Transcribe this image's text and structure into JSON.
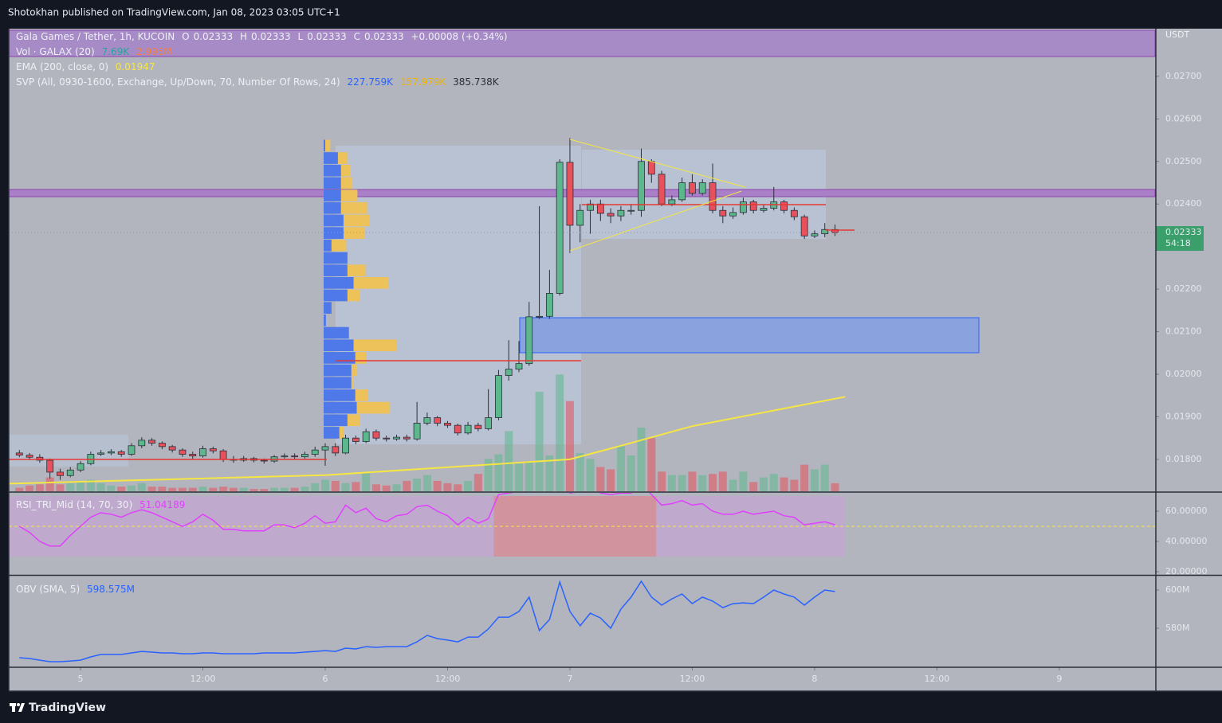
{
  "header": {
    "publisher": "Shotokhan published on TradingView.com, Jan 08, 2023 03:05 UTC+1"
  },
  "footer": {
    "brand": "TradingView"
  },
  "chart_data": [
    {
      "type": "candlestick",
      "symbol": "Gala Games / Tether, 1h, KUCOIN",
      "readout": {
        "labels": [
          "O",
          "H",
          "L",
          "C"
        ],
        "values": [
          0.02333,
          0.02333,
          0.02333,
          0.02333
        ],
        "change": "+0.00008 (+0.34%)"
      },
      "currency": "USDT",
      "last_price": 0.02333,
      "countdown": "54:18",
      "up_color": "#5cb88c",
      "down_color": "#e8505b",
      "xlim": [
        -7.04,
        105.47
      ],
      "ylim": [
        0.01725,
        0.02812
      ],
      "yticks": [
        {
          "value": 0.027,
          "label": "0.02700"
        },
        {
          "value": 0.026,
          "label": "0.02600"
        },
        {
          "value": 0.025,
          "label": "0.02500"
        },
        {
          "value": 0.024,
          "label": "0.02400"
        },
        {
          "value": 0.022,
          "label": "0.02200"
        },
        {
          "value": 0.021,
          "label": "0.02100"
        },
        {
          "value": 0.02,
          "label": "0.02000"
        },
        {
          "value": 0.019,
          "label": "0.01900"
        },
        {
          "value": 0.018,
          "label": "0.01800"
        }
      ],
      "x": [
        -6,
        -5,
        -4,
        -3,
        -2,
        -1,
        0,
        1,
        2,
        3,
        4,
        5,
        6,
        7,
        8,
        9,
        10,
        11,
        12,
        13,
        14,
        15,
        16,
        17,
        18,
        19,
        20,
        21,
        22,
        23,
        24,
        25,
        26,
        27,
        28,
        29,
        30,
        31,
        32,
        33,
        34,
        35,
        36,
        37,
        38,
        39,
        40,
        41,
        42,
        43,
        44,
        45,
        46,
        47,
        48,
        49,
        50,
        51,
        52,
        53,
        54,
        55,
        56,
        57,
        58,
        59,
        60,
        61,
        62,
        63,
        64,
        65,
        66,
        67,
        68,
        69,
        70,
        71,
        72,
        73,
        74
      ],
      "open": [
        0.01815,
        0.0181,
        0.01805,
        0.01798,
        0.0177,
        0.01762,
        0.01775,
        0.0179,
        0.01812,
        0.01815,
        0.01818,
        0.01812,
        0.01832,
        0.01845,
        0.01838,
        0.0183,
        0.01822,
        0.01812,
        0.01808,
        0.01825,
        0.0182,
        0.018,
        0.01798,
        0.01802,
        0.01798,
        0.01796,
        0.01806,
        0.01808,
        0.01806,
        0.01812,
        0.01822,
        0.0183,
        0.01815,
        0.0185,
        0.01842,
        0.01865,
        0.0185,
        0.01848,
        0.01852,
        0.01848,
        0.01885,
        0.01898,
        0.01885,
        0.0188,
        0.01862,
        0.0188,
        0.01872,
        0.01898,
        0.01997,
        0.02012,
        0.02025,
        0.02135,
        0.02136,
        0.0219,
        0.02498,
        0.0235,
        0.02385,
        0.024,
        0.02378,
        0.02372,
        0.02385,
        0.02385,
        0.025,
        0.0247,
        0.024,
        0.0241,
        0.0245,
        0.02425,
        0.0245,
        0.02385,
        0.02372,
        0.0238,
        0.02405,
        0.02385,
        0.0239,
        0.02405,
        0.02385,
        0.0237,
        0.02325,
        0.0233,
        0.0234
      ],
      "high": [
        0.01822,
        0.01815,
        0.01812,
        0.01802,
        0.01778,
        0.01782,
        0.01796,
        0.01818,
        0.01822,
        0.01824,
        0.01822,
        0.01838,
        0.01852,
        0.0185,
        0.01842,
        0.01834,
        0.01826,
        0.01818,
        0.01832,
        0.0183,
        0.01824,
        0.01808,
        0.01808,
        0.01806,
        0.01802,
        0.0181,
        0.01814,
        0.01814,
        0.01818,
        0.0183,
        0.01838,
        0.01838,
        0.01858,
        0.01856,
        0.01872,
        0.0187,
        0.01856,
        0.01858,
        0.01858,
        0.01935,
        0.0191,
        0.01902,
        0.0189,
        0.01884,
        0.01888,
        0.01886,
        0.01965,
        0.0201,
        0.0208,
        0.02078,
        0.0217,
        0.02395,
        0.02245,
        0.02505,
        0.02555,
        0.024,
        0.0241,
        0.0241,
        0.0239,
        0.02395,
        0.024,
        0.0253,
        0.02505,
        0.02478,
        0.0242,
        0.02462,
        0.0247,
        0.02458,
        0.02495,
        0.02395,
        0.02392,
        0.02415,
        0.0241,
        0.02398,
        0.0244,
        0.0241,
        0.02392,
        0.02375,
        0.02338,
        0.02355,
        0.02352
      ],
      "low": [
        0.01805,
        0.018,
        0.01792,
        0.01755,
        0.01752,
        0.01758,
        0.0177,
        0.01786,
        0.01808,
        0.0181,
        0.01806,
        0.01808,
        0.01826,
        0.01832,
        0.01824,
        0.01816,
        0.01806,
        0.018,
        0.01804,
        0.01814,
        0.01794,
        0.01792,
        0.01794,
        0.01793,
        0.0179,
        0.01792,
        0.01802,
        0.018,
        0.01802,
        0.01806,
        0.01785,
        0.01808,
        0.01812,
        0.01836,
        0.01838,
        0.01844,
        0.01842,
        0.01844,
        0.01842,
        0.01844,
        0.0188,
        0.01878,
        0.01874,
        0.01856,
        0.01858,
        0.01866,
        0.01868,
        0.01892,
        0.01985,
        0.02005,
        0.0202,
        0.0213,
        0.0213,
        0.02185,
        0.02285,
        0.0231,
        0.0233,
        0.0236,
        0.02355,
        0.0236,
        0.02375,
        0.0237,
        0.0245,
        0.02395,
        0.02395,
        0.02405,
        0.0242,
        0.0242,
        0.02378,
        0.02355,
        0.02365,
        0.02375,
        0.02378,
        0.0238,
        0.02385,
        0.02378,
        0.02362,
        0.02318,
        0.0232,
        0.02322,
        0.02325
      ],
      "close": [
        0.0181,
        0.01805,
        0.01798,
        0.0177,
        0.01762,
        0.01775,
        0.0179,
        0.01812,
        0.01815,
        0.01818,
        0.01812,
        0.01832,
        0.01845,
        0.01838,
        0.0183,
        0.01822,
        0.01812,
        0.01808,
        0.01825,
        0.0182,
        0.018,
        0.01798,
        0.01802,
        0.01798,
        0.01796,
        0.01806,
        0.01808,
        0.01806,
        0.01812,
        0.01822,
        0.0183,
        0.01815,
        0.0185,
        0.01842,
        0.01865,
        0.0185,
        0.01848,
        0.01852,
        0.01848,
        0.01885,
        0.01898,
        0.01885,
        0.0188,
        0.01862,
        0.0188,
        0.01872,
        0.01898,
        0.01997,
        0.02012,
        0.02025,
        0.02135,
        0.02136,
        0.0219,
        0.02498,
        0.0235,
        0.02385,
        0.024,
        0.02378,
        0.02372,
        0.02385,
        0.02385,
        0.025,
        0.0247,
        0.024,
        0.0241,
        0.0245,
        0.02425,
        0.0245,
        0.02385,
        0.02372,
        0.0238,
        0.02405,
        0.02385,
        0.0239,
        0.02405,
        0.02385,
        0.0237,
        0.02325,
        0.0233,
        0.0234,
        0.02333
      ],
      "volume": {
        "label": "Vol · GALAX (20)",
        "readouts": [
          "7.69K",
          "2.995M"
        ],
        "ylim": [
          0,
          40
        ],
        "values": [
          0.3,
          0.5,
          0.6,
          1.2,
          0.6,
          0.7,
          0.8,
          1.0,
          0.7,
          0.5,
          0.4,
          0.5,
          0.7,
          0.4,
          0.4,
          0.3,
          0.3,
          0.3,
          0.4,
          0.3,
          0.4,
          0.3,
          0.3,
          0.2,
          0.2,
          0.3,
          0.3,
          0.3,
          0.4,
          0.7,
          1.0,
          0.9,
          0.7,
          0.8,
          1.6,
          0.6,
          0.5,
          0.6,
          0.9,
          1.1,
          1.4,
          0.9,
          0.7,
          0.6,
          0.9,
          1.5,
          2.8,
          3.2,
          5.2,
          2.4,
          2.6,
          8.6,
          3.1,
          10.1,
          7.8,
          3.3,
          2.8,
          2.1,
          1.9,
          3.9,
          3.1,
          5.5,
          4.6,
          1.7,
          1.4,
          1.4,
          1.7,
          1.4,
          1.5,
          1.7,
          1.0,
          1.7,
          0.8,
          1.2,
          1.5,
          1.2,
          1.0,
          2.3,
          1.9,
          2.3,
          0.7
        ]
      },
      "ema": {
        "label": "EMA (200, close, 0)",
        "value": 0.01947,
        "color": "#f5e642",
        "x": [
          -7,
          24,
          48,
          53,
          60,
          75
        ],
        "values": [
          0.01743,
          0.01763,
          0.018,
          0.01832,
          0.01878,
          0.01947
        ]
      },
      "profile": {
        "label": "SVP (All, 0930-1600, Exchange, Up/Down, 70, Number Of Rows, 24)",
        "readouts": [
          "227.759K",
          "157.979K",
          "385.738K"
        ],
        "up_color": "#4f79e8",
        "down_color": "#eec25a",
        "x": 24,
        "range": [
          0.01847,
          0.02551
        ],
        "up": [
          0.8,
          6.9,
          8.4,
          8.4,
          8.4,
          8.4,
          9.6,
          9.6,
          3.8,
          11.5,
          11.5,
          14.5,
          11.5,
          3.8,
          1.1,
          12.2,
          14.5,
          15.3,
          13.4,
          13.4,
          15.3,
          16.0,
          11.5,
          7.6
        ],
        "down": [
          2.4,
          4.7,
          4.7,
          5.5,
          7.9,
          12.6,
          12.6,
          10.3,
          7.1,
          0,
          8.7,
          16.6,
          5.9,
          0,
          0,
          0,
          20.5,
          5.1,
          2.8,
          1.2,
          5.9,
          15.8,
          5.9,
          2.0
        ]
      }
    },
    {
      "type": "line",
      "label": "RSI_TRI_Mid (14, 70, 30)",
      "value": 51.04189,
      "color": "#e040fb",
      "levels": [
        70,
        50,
        30
      ],
      "xlim": [
        -7.04,
        105.47
      ],
      "ylim": [
        17.9,
        72.1
      ],
      "yticks": [
        {
          "value": 60,
          "label": "60.00000"
        },
        {
          "value": 40,
          "label": "40.00000"
        },
        {
          "value": 20,
          "label": "20.00000"
        }
      ],
      "x": [
        -6,
        -5,
        -4,
        -3,
        -2,
        -1,
        0,
        1,
        2,
        3,
        4,
        5,
        6,
        7,
        8,
        9,
        10,
        11,
        12,
        13,
        14,
        15,
        16,
        17,
        18,
        19,
        20,
        21,
        22,
        23,
        24,
        25,
        26,
        27,
        28,
        29,
        30,
        31,
        32,
        33,
        34,
        35,
        36,
        37,
        38,
        39,
        40,
        41,
        42,
        43,
        44,
        45,
        46,
        47,
        48,
        49,
        50,
        51,
        52,
        53,
        54,
        55,
        56,
        57,
        58,
        59,
        60,
        61,
        62,
        63,
        64,
        65,
        66,
        67,
        68,
        69,
        70,
        71,
        72,
        73,
        74
      ],
      "values": [
        50,
        46,
        40,
        37,
        37,
        44,
        50,
        56,
        59,
        58,
        56,
        59,
        61,
        59,
        56,
        53,
        50,
        53,
        58,
        54,
        48,
        48,
        47,
        47,
        47,
        51,
        51,
        49,
        52,
        57,
        52,
        53,
        64,
        59,
        62,
        55,
        53,
        57,
        58,
        63,
        64,
        60,
        57,
        51,
        56,
        52,
        55,
        71,
        72,
        73,
        78,
        78,
        80,
        86,
        72,
        73,
        75,
        72,
        71,
        72,
        72,
        78,
        71,
        64,
        65,
        67,
        64,
        65,
        60,
        58,
        58,
        60,
        58,
        59,
        60,
        57,
        56,
        51,
        52,
        53,
        51
      ]
    },
    {
      "type": "line",
      "label": "OBV (SMA, 5)",
      "readout": "598.575M",
      "color": "#2962ff",
      "xlim": [
        -7.04,
        105.47
      ],
      "ylim": [
        559.6,
        607.5
      ],
      "yticks": [
        {
          "value": 600,
          "label": "600M"
        },
        {
          "value": 580,
          "label": "580M"
        }
      ],
      "xticks": [
        {
          "value": 0,
          "label": "5"
        },
        {
          "value": 12,
          "label": "12:00"
        },
        {
          "value": 24,
          "label": "6"
        },
        {
          "value": 36,
          "label": "12:00"
        },
        {
          "value": 48,
          "label": "7"
        },
        {
          "value": 60,
          "label": "12:00"
        },
        {
          "value": 72,
          "label": "8"
        },
        {
          "value": 84,
          "label": "12:00"
        },
        {
          "value": 96,
          "label": "9"
        }
      ],
      "x": [
        -6,
        -5,
        -4,
        -3,
        -2,
        -1,
        0,
        1,
        2,
        3,
        4,
        5,
        6,
        7,
        8,
        9,
        10,
        11,
        12,
        13,
        14,
        15,
        16,
        17,
        18,
        19,
        20,
        21,
        22,
        23,
        24,
        25,
        26,
        27,
        28,
        29,
        30,
        31,
        32,
        33,
        34,
        35,
        36,
        37,
        38,
        39,
        40,
        41,
        42,
        43,
        44,
        45,
        46,
        47,
        48,
        49,
        50,
        51,
        52,
        53,
        54,
        55,
        56,
        57,
        58,
        59,
        60,
        61,
        62,
        63,
        64,
        65,
        66,
        67,
        68,
        69,
        70,
        71,
        72,
        73,
        74
      ],
      "values": [
        564.6,
        564.2,
        563.3,
        562.5,
        562.5,
        562.9,
        563.3,
        565,
        566.3,
        566.3,
        566.3,
        567.1,
        567.9,
        567.5,
        567.1,
        567.1,
        566.7,
        566.7,
        567.1,
        567.1,
        566.7,
        566.7,
        566.7,
        566.7,
        567.1,
        567.1,
        567.1,
        567.1,
        567.5,
        567.9,
        568.3,
        567.9,
        569.6,
        569.2,
        570.4,
        570,
        570.4,
        570.4,
        570.4,
        572.9,
        576.3,
        574.6,
        573.8,
        572.9,
        575.4,
        575.4,
        579.6,
        585.8,
        585.8,
        588.8,
        596.3,
        578.8,
        584.6,
        604.2,
        588.8,
        581.3,
        587.9,
        585.4,
        580,
        590,
        596.3,
        604.6,
        596.3,
        592.1,
        595.4,
        597.9,
        592.9,
        596.3,
        594.2,
        590.8,
        592.9,
        593.3,
        592.9,
        596.3,
        600,
        597.9,
        596.3,
        592.1,
        596.3,
        600,
        599.2
      ]
    }
  ]
}
